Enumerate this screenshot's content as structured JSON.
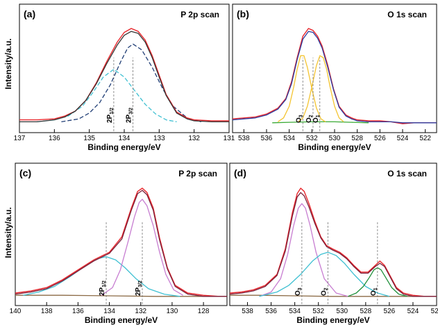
{
  "figure": {
    "y_label_top": "Intensity/a.u.",
    "y_label_bottom": "Intensity/a.u."
  },
  "chart_data": [
    {
      "id": "a",
      "type": "line",
      "panel_label": "(a)",
      "title": "P 2p scan",
      "xlabel": "Binding energy/eV",
      "xlim": [
        137,
        131
      ],
      "xticks": [
        137,
        136,
        135,
        134,
        133,
        132,
        131
      ],
      "ylim": [
        0,
        1.05
      ],
      "series": [
        {
          "role": "raw",
          "color": "#e8262b",
          "x": [
            137,
            136.5,
            136,
            135.7,
            135.4,
            135.1,
            134.8,
            134.5,
            134.2,
            134,
            133.8,
            133.6,
            133.4,
            133.2,
            133,
            132.8,
            132.5,
            132.2,
            132,
            131.5,
            131
          ],
          "y": [
            0.06,
            0.06,
            0.07,
            0.1,
            0.15,
            0.26,
            0.44,
            0.66,
            0.86,
            0.96,
            1.0,
            0.97,
            0.88,
            0.72,
            0.52,
            0.32,
            0.14,
            0.08,
            0.06,
            0.05,
            0.05
          ]
        },
        {
          "role": "envelope",
          "color": "#333333",
          "x": [
            137,
            136.5,
            136,
            135.7,
            135.4,
            135.1,
            134.8,
            134.5,
            134.2,
            134,
            133.8,
            133.6,
            133.4,
            133.2,
            133,
            132.8,
            132.5,
            132.2,
            132,
            131.5,
            131
          ],
          "y": [
            0.04,
            0.04,
            0.06,
            0.09,
            0.15,
            0.26,
            0.43,
            0.64,
            0.83,
            0.93,
            0.97,
            0.95,
            0.86,
            0.7,
            0.5,
            0.31,
            0.13,
            0.07,
            0.05,
            0.04,
            0.04
          ]
        },
        {
          "role": "component",
          "name": "2P1/2",
          "color": "#3fc0d2",
          "dashed": true,
          "x": [
            136.5,
            136,
            135.6,
            135.2,
            134.9,
            134.6,
            134.3,
            134,
            133.7,
            133.4,
            133.1,
            132.8,
            132.5
          ],
          "y": [
            0.04,
            0.06,
            0.1,
            0.2,
            0.34,
            0.5,
            0.58,
            0.5,
            0.36,
            0.22,
            0.12,
            0.06,
            0.04
          ]
        },
        {
          "role": "component",
          "name": "2P3/2",
          "color": "#1f3d75",
          "dashed": true,
          "x": [
            135.8,
            135.3,
            135,
            134.7,
            134.4,
            134.1,
            133.9,
            133.75,
            133.5,
            133.2,
            132.9,
            132.6,
            132.2,
            131.8
          ],
          "y": [
            0.04,
            0.07,
            0.13,
            0.24,
            0.42,
            0.66,
            0.8,
            0.84,
            0.78,
            0.6,
            0.38,
            0.2,
            0.08,
            0.04
          ]
        }
      ],
      "peak_labels": [
        {
          "html_base": "2P",
          "sub": "1/2",
          "x": 134.3
        },
        {
          "html_base": "2P",
          "sub": "3/2",
          "x": 133.75
        }
      ]
    },
    {
      "id": "b",
      "type": "line",
      "panel_label": "(b)",
      "title": "O 1s scan",
      "xlabel": "Binding energy/eV",
      "xlim": [
        539,
        521
      ],
      "xticks": [
        538,
        536,
        534,
        532,
        530,
        528,
        526,
        524,
        522
      ],
      "ylim": [
        0,
        1.05
      ],
      "series": [
        {
          "role": "raw",
          "color": "#e8262b",
          "x": [
            539,
            538,
            537,
            536,
            535,
            534.3,
            533.8,
            533.3,
            532.8,
            532.3,
            531.9,
            531.5,
            531.1,
            530.6,
            530.1,
            529.6,
            529,
            528.5,
            528,
            527,
            526,
            525,
            524,
            523,
            522,
            521
          ],
          "y": [
            0.07,
            0.08,
            0.09,
            0.12,
            0.18,
            0.28,
            0.45,
            0.7,
            0.92,
            1.0,
            0.98,
            0.92,
            0.82,
            0.62,
            0.38,
            0.2,
            0.11,
            0.08,
            0.06,
            0.05,
            0.05,
            0.04,
            0.02,
            0.03,
            0.03,
            0.03
          ]
        },
        {
          "role": "envelope",
          "color": "#2a3a9e",
          "x": [
            539,
            538,
            537,
            536,
            535,
            534.3,
            533.8,
            533.3,
            532.8,
            532.3,
            531.9,
            531.5,
            531.1,
            530.6,
            530.1,
            529.6,
            529,
            528.5,
            528,
            527,
            526,
            525,
            524,
            523,
            522,
            521
          ],
          "y": [
            0.06,
            0.07,
            0.08,
            0.11,
            0.17,
            0.27,
            0.43,
            0.68,
            0.89,
            0.97,
            0.96,
            0.9,
            0.8,
            0.6,
            0.37,
            0.19,
            0.1,
            0.07,
            0.05,
            0.04,
            0.04,
            0.04,
            0.03,
            0.03,
            0.03,
            0.03
          ]
        },
        {
          "role": "component",
          "name": "O3",
          "color": "#f4c430",
          "x": [
            535,
            534.5,
            534,
            533.6,
            533.3,
            533,
            532.7,
            532.4,
            532,
            531.6,
            531.2,
            530.8
          ],
          "y": [
            0.04,
            0.08,
            0.2,
            0.4,
            0.58,
            0.72,
            0.72,
            0.6,
            0.38,
            0.18,
            0.07,
            0.04
          ]
        },
        {
          "role": "component",
          "name": "O1",
          "color": "#f4c430",
          "x": [
            533.2,
            532.8,
            532.4,
            532,
            531.6,
            531.3,
            531,
            530.7,
            530.4,
            530,
            529.6,
            529.2
          ],
          "y": [
            0.04,
            0.08,
            0.2,
            0.4,
            0.62,
            0.72,
            0.7,
            0.58,
            0.4,
            0.2,
            0.08,
            0.04
          ]
        },
        {
          "role": "background",
          "color": "#3aaa35",
          "x": [
            535.5,
            534,
            532,
            530,
            528.5,
            527
          ],
          "y": [
            0.03,
            0.035,
            0.04,
            0.04,
            0.035,
            0.03
          ]
        }
      ],
      "peak_labels": [
        {
          "html_base": "O",
          "sub": "3",
          "x": 532.8
        },
        {
          "html_base": "O",
          "sub": "2",
          "x": 531.9
        },
        {
          "html_base": "O",
          "sub": "1",
          "x": 531.3
        }
      ]
    },
    {
      "id": "c",
      "type": "line",
      "panel_label": "(c)",
      "title": "P 2p scan",
      "xlabel": "Binding energy/eV",
      "xlim": [
        140,
        126.5
      ],
      "xticks": [
        140,
        138,
        136,
        134,
        132,
        130,
        128
      ],
      "ylim": [
        0,
        1.05
      ],
      "series": [
        {
          "role": "raw",
          "color": "#e8262b",
          "x": [
            140,
            139,
            138,
            137,
            136,
            135,
            134,
            133.2,
            132.6,
            132.2,
            131.9,
            131.6,
            131.2,
            130.8,
            130.3,
            129.8,
            129,
            128,
            127,
            126.5
          ],
          "y": [
            0.05,
            0.07,
            0.1,
            0.17,
            0.26,
            0.35,
            0.42,
            0.56,
            0.82,
            0.97,
            1.0,
            0.96,
            0.82,
            0.55,
            0.28,
            0.12,
            0.05,
            0.03,
            0.02,
            0.02
          ]
        },
        {
          "role": "envelope",
          "color": "#7a1f3a",
          "x": [
            140,
            139,
            138,
            137,
            136,
            135,
            134,
            133.2,
            132.6,
            132.2,
            131.9,
            131.6,
            131.2,
            130.8,
            130.3,
            129.8,
            129,
            128,
            127,
            126.5
          ],
          "y": [
            0.04,
            0.06,
            0.09,
            0.16,
            0.25,
            0.34,
            0.41,
            0.54,
            0.8,
            0.95,
            0.98,
            0.94,
            0.8,
            0.53,
            0.27,
            0.11,
            0.04,
            0.02,
            0.02,
            0.02
          ]
        },
        {
          "role": "component",
          "name": "2P1/2",
          "color": "#3fc0d2",
          "x": [
            139.5,
            138.5,
            137.5,
            136.5,
            135.5,
            134.8,
            134.2,
            133.6,
            133,
            132.3,
            131.5,
            130.5,
            129.5
          ],
          "y": [
            0.03,
            0.06,
            0.11,
            0.2,
            0.3,
            0.36,
            0.38,
            0.35,
            0.28,
            0.18,
            0.09,
            0.04,
            0.02
          ]
        },
        {
          "role": "component",
          "name": "2P3/2",
          "color": "#c77dd1",
          "x": [
            134.5,
            133.8,
            133.3,
            132.8,
            132.4,
            132.1,
            131.9,
            131.6,
            131.2,
            130.8,
            130.4,
            129.9,
            129.3
          ],
          "y": [
            0.03,
            0.1,
            0.26,
            0.52,
            0.74,
            0.87,
            0.9,
            0.84,
            0.66,
            0.42,
            0.22,
            0.08,
            0.03
          ]
        },
        {
          "role": "background",
          "color": "#8b6a45",
          "x": [
            140,
            137,
            134,
            131,
            128,
            126.5
          ],
          "y": [
            0.03,
            0.03,
            0.025,
            0.02,
            0.02,
            0.02
          ]
        }
      ],
      "peak_labels": [
        {
          "html_base": "2P",
          "sub": "1/2",
          "x": 134.2
        },
        {
          "html_base": "2P",
          "sub": "3/2",
          "x": 131.9
        }
      ]
    },
    {
      "id": "d",
      "type": "line",
      "panel_label": "(d)",
      "title": "O 1s scan",
      "xlabel": "Binding energy/eV",
      "xlim": [
        539.5,
        522
      ],
      "xticks": [
        538,
        536,
        534,
        532,
        530,
        528,
        526,
        524,
        522
      ],
      "ylim": [
        0,
        1.05
      ],
      "series": [
        {
          "role": "raw",
          "color": "#e8262b",
          "x": [
            539.5,
            538.5,
            537.5,
            536.5,
            535.5,
            534.8,
            534.2,
            533.8,
            533.5,
            533.2,
            532.8,
            532.3,
            531.8,
            531.3,
            530.8,
            530.2,
            529.6,
            529,
            528.4,
            527.8,
            527.2,
            526.8,
            526.4,
            525.9,
            525.4,
            524.8,
            524,
            523,
            522
          ],
          "y": [
            0.05,
            0.06,
            0.08,
            0.12,
            0.22,
            0.45,
            0.78,
            0.95,
            1.0,
            0.97,
            0.86,
            0.7,
            0.56,
            0.48,
            0.45,
            0.42,
            0.37,
            0.3,
            0.24,
            0.24,
            0.3,
            0.34,
            0.3,
            0.2,
            0.1,
            0.05,
            0.03,
            0.02,
            0.02
          ]
        },
        {
          "role": "envelope",
          "color": "#7a1f3a",
          "x": [
            539.5,
            538.5,
            537.5,
            536.5,
            535.5,
            534.8,
            534.2,
            533.8,
            533.5,
            533.2,
            532.8,
            532.3,
            531.8,
            531.3,
            530.8,
            530.2,
            529.6,
            529,
            528.4,
            527.8,
            527.2,
            526.8,
            526.4,
            525.9,
            525.4,
            524.8,
            524,
            523,
            522
          ],
          "y": [
            0.04,
            0.05,
            0.07,
            0.11,
            0.21,
            0.43,
            0.75,
            0.92,
            0.96,
            0.93,
            0.83,
            0.68,
            0.55,
            0.47,
            0.44,
            0.41,
            0.36,
            0.29,
            0.23,
            0.23,
            0.29,
            0.32,
            0.29,
            0.19,
            0.09,
            0.04,
            0.02,
            0.02,
            0.02
          ]
        },
        {
          "role": "component",
          "name": "O3",
          "color": "#c77dd1",
          "x": [
            537,
            536,
            535.2,
            534.6,
            534.1,
            533.7,
            533.4,
            533.1,
            532.7,
            532.2,
            531.5,
            530.5,
            529.5
          ],
          "y": [
            0.02,
            0.06,
            0.18,
            0.4,
            0.66,
            0.82,
            0.86,
            0.82,
            0.66,
            0.42,
            0.18,
            0.05,
            0.02
          ]
        },
        {
          "role": "component",
          "name": "O2",
          "color": "#3fc0d2",
          "x": [
            537,
            535.5,
            534.5,
            533.5,
            532.5,
            531.8,
            531.2,
            530.5,
            529.8,
            529,
            528,
            527,
            526
          ],
          "y": [
            0.02,
            0.06,
            0.12,
            0.22,
            0.34,
            0.4,
            0.42,
            0.39,
            0.32,
            0.22,
            0.11,
            0.05,
            0.02
          ]
        },
        {
          "role": "component",
          "name": "O1",
          "color": "#1e8f3a",
          "x": [
            529.5,
            528.8,
            528.2,
            527.7,
            527.3,
            527,
            526.7,
            526.3,
            525.8,
            525.2,
            524.5
          ],
          "y": [
            0.02,
            0.05,
            0.11,
            0.19,
            0.26,
            0.28,
            0.26,
            0.19,
            0.1,
            0.04,
            0.02
          ]
        },
        {
          "role": "background",
          "color": "#8b6a45",
          "x": [
            539.5,
            537,
            534,
            531,
            528,
            525,
            522
          ],
          "y": [
            0.03,
            0.03,
            0.025,
            0.02,
            0.02,
            0.02,
            0.02
          ]
        }
      ],
      "peak_labels": [
        {
          "html_base": "O",
          "sub": "3",
          "x": 533.4
        },
        {
          "html_base": "O",
          "sub": "2",
          "x": 531.2
        },
        {
          "html_base": "O",
          "sub": "1",
          "x": 527
        }
      ]
    }
  ]
}
